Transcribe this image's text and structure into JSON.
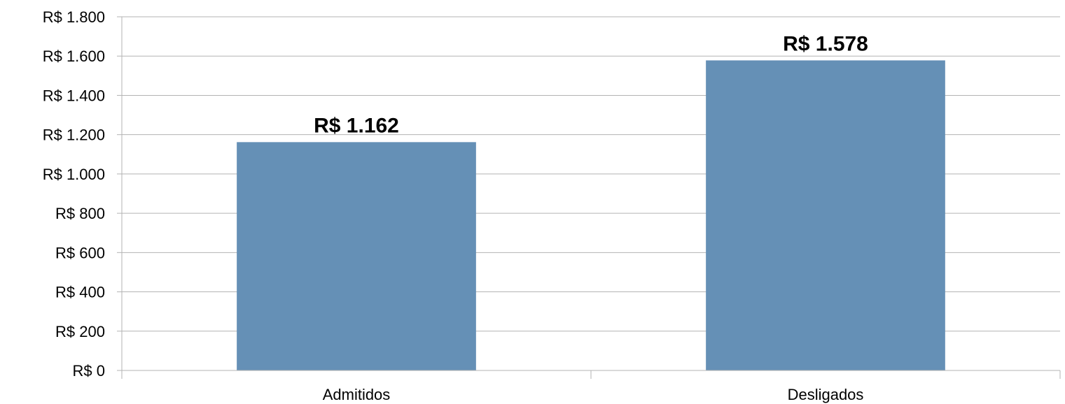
{
  "chart_data": {
    "type": "bar",
    "categories": [
      "Admitidos",
      "Desligados"
    ],
    "values": [
      1162,
      1578
    ],
    "data_labels": [
      "R$ 1.162",
      "R$ 1.578"
    ],
    "title": "",
    "xlabel": "",
    "ylabel": "",
    "ylim": [
      0,
      1800
    ],
    "yticks": [
      0,
      200,
      400,
      600,
      800,
      1000,
      1200,
      1400,
      1600,
      1800
    ],
    "ytick_labels": [
      "R$ 0",
      "R$ 200",
      "R$ 400",
      "R$ 600",
      "R$ 800",
      "R$ 1.000",
      "R$ 1.200",
      "R$ 1.400",
      "R$ 1.600",
      "R$ 1.800"
    ],
    "grid": true,
    "legend": "none",
    "bar_color": "#6590b6",
    "grid_color": "#b3b3b3"
  }
}
